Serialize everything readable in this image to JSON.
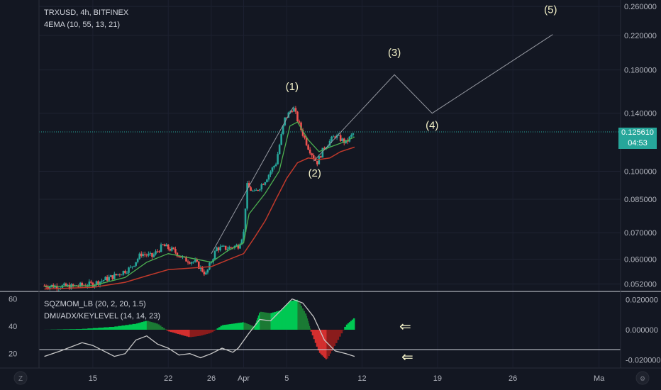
{
  "header": {
    "symbol": "TRXUSD, 4h, BITFINEX",
    "indicator": "4EMA (10, 55, 13, 21)"
  },
  "sub_panel": {
    "indicator1": "SQZMOM_LB (20, 2, 20, 1.5)",
    "indicator2": "DMI/ADX/KEYLEVEL (14, 14, 23)"
  },
  "price_tag": {
    "value": "0.125610",
    "countdown": "04:53"
  },
  "arrows": [
    "⇐",
    "⇐"
  ],
  "colors": {
    "background": "#131722",
    "up": "#26a69a",
    "down": "#ef5350",
    "ema_fast": "#4caf50",
    "ema_slow": "#c0392b",
    "wave": "#9598a1",
    "annotation": "#f3f1c8"
  },
  "chart_data": [
    {
      "type": "candlestick",
      "title": "TRXUSD, 4h, BITFINEX",
      "x_ticks": [
        "15",
        "22",
        "26",
        "Apr",
        "5",
        "12",
        "19",
        "26",
        "Ma"
      ],
      "x_tick_days": [
        15,
        22,
        26,
        29,
        33,
        40,
        47,
        54,
        62
      ],
      "xlim_days": [
        10,
        64
      ],
      "y_scale": "log",
      "y_ticks": [
        0.052,
        0.06,
        0.07,
        0.085,
        0.1,
        0.14,
        0.18,
        0.22,
        0.26
      ],
      "y_tick_labels": [
        "0.052000",
        "0.060000",
        "0.070000",
        "0.085000",
        "0.100000",
        "0.140000",
        "0.180000",
        "0.220000",
        "0.260000"
      ],
      "ylim": [
        0.05,
        0.27
      ],
      "last_price": 0.12561,
      "price_path": [
        [
          10.5,
          0.0515
        ],
        [
          13.0,
          0.0512
        ],
        [
          15.0,
          0.052
        ],
        [
          17.0,
          0.0545
        ],
        [
          18.5,
          0.057
        ],
        [
          19.5,
          0.062
        ],
        [
          20.5,
          0.061
        ],
        [
          21.5,
          0.065
        ],
        [
          22.5,
          0.063
        ],
        [
          23.5,
          0.06
        ],
        [
          24.5,
          0.059
        ],
        [
          25.5,
          0.055
        ],
        [
          26.5,
          0.064
        ],
        [
          27.5,
          0.064
        ],
        [
          28.5,
          0.065
        ],
        [
          29.0,
          0.07
        ],
        [
          29.3,
          0.092
        ],
        [
          30.0,
          0.088
        ],
        [
          31.0,
          0.095
        ],
        [
          32.0,
          0.105
        ],
        [
          32.8,
          0.135
        ],
        [
          33.6,
          0.145
        ],
        [
          34.2,
          0.13
        ],
        [
          35.0,
          0.115
        ],
        [
          35.8,
          0.105
        ],
        [
          36.5,
          0.115
        ],
        [
          37.5,
          0.123
        ],
        [
          38.5,
          0.118
        ],
        [
          39.3,
          0.1256
        ]
      ],
      "ema_fast": [
        [
          10.5,
          0.0512
        ],
        [
          15.0,
          0.0515
        ],
        [
          18.0,
          0.054
        ],
        [
          20.0,
          0.059
        ],
        [
          22.0,
          0.062
        ],
        [
          24.0,
          0.0605
        ],
        [
          26.0,
          0.059
        ],
        [
          27.5,
          0.063
        ],
        [
          29.0,
          0.066
        ],
        [
          29.5,
          0.078
        ],
        [
          31.0,
          0.088
        ],
        [
          32.3,
          0.1
        ],
        [
          33.3,
          0.13
        ],
        [
          34.0,
          0.133
        ],
        [
          35.0,
          0.12
        ],
        [
          36.0,
          0.112
        ],
        [
          37.0,
          0.115
        ],
        [
          38.5,
          0.119
        ],
        [
          39.3,
          0.122
        ]
      ],
      "ema_slow": [
        [
          10.5,
          0.0505
        ],
        [
          15.0,
          0.051
        ],
        [
          18.0,
          0.0525
        ],
        [
          20.0,
          0.0545
        ],
        [
          22.0,
          0.0565
        ],
        [
          24.0,
          0.057
        ],
        [
          26.0,
          0.0575
        ],
        [
          28.0,
          0.0605
        ],
        [
          29.0,
          0.062
        ],
        [
          30.0,
          0.068
        ],
        [
          31.0,
          0.075
        ],
        [
          32.0,
          0.085
        ],
        [
          33.0,
          0.096
        ],
        [
          34.0,
          0.105
        ],
        [
          35.0,
          0.108
        ],
        [
          36.0,
          0.107
        ],
        [
          37.0,
          0.108
        ],
        [
          38.0,
          0.112
        ],
        [
          39.3,
          0.115
        ]
      ],
      "wave_labels": [
        {
          "label": "(1)",
          "day": 33.5,
          "price": 0.16
        },
        {
          "label": "(2)",
          "day": 35.6,
          "price": 0.097
        },
        {
          "label": "(3)",
          "day": 43.0,
          "price": 0.195
        },
        {
          "label": "(4)",
          "day": 46.5,
          "price": 0.128
        },
        {
          "label": "(5)",
          "day": 57.5,
          "price": 0.25
        }
      ],
      "wave_path": [
        [
          35.5,
          0.106
        ],
        [
          43.0,
          0.175
        ],
        [
          46.5,
          0.14
        ],
        [
          57.7,
          0.221
        ]
      ],
      "trend_line": [
        [
          26.0,
          0.062
        ],
        [
          33.6,
          0.145
        ]
      ]
    },
    {
      "type": "area",
      "title": "SQZMOM_LB (20, 2, 20, 1.5)",
      "y_ticks": [
        0.02,
        0.0,
        -0.02
      ],
      "y_tick_labels": [
        "0.020000",
        "0.000000",
        "-0.020000"
      ],
      "left_ticks": [
        60,
        40,
        20
      ],
      "momentum": [
        [
          10.5,
          0.0
        ],
        [
          14.0,
          0.0005
        ],
        [
          17.0,
          0.002
        ],
        [
          19.0,
          0.004
        ],
        [
          20.0,
          0.006
        ],
        [
          21.0,
          0.004
        ],
        [
          22.0,
          -0.001
        ],
        [
          23.0,
          -0.003
        ],
        [
          24.0,
          -0.005
        ],
        [
          25.0,
          -0.004
        ],
        [
          26.0,
          -0.002
        ],
        [
          27.0,
          0.003
        ],
        [
          28.0,
          0.004
        ],
        [
          29.0,
          0.005
        ],
        [
          30.0,
          0.002
        ],
        [
          30.5,
          0.012
        ],
        [
          31.5,
          0.011
        ],
        [
          32.5,
          0.013
        ],
        [
          33.3,
          0.019
        ],
        [
          34.0,
          0.02
        ],
        [
          34.8,
          0.01
        ],
        [
          35.2,
          0.0
        ],
        [
          36.0,
          -0.015
        ],
        [
          36.7,
          -0.02
        ],
        [
          37.5,
          -0.01
        ],
        [
          38.5,
          0.003
        ],
        [
          39.3,
          0.008
        ]
      ],
      "dmi_adx": [
        [
          10.5,
          18
        ],
        [
          12.0,
          22
        ],
        [
          14.0,
          28
        ],
        [
          15.0,
          26
        ],
        [
          16.0,
          22
        ],
        [
          17.0,
          18
        ],
        [
          18.0,
          20
        ],
        [
          19.0,
          30
        ],
        [
          20.0,
          33
        ],
        [
          21.0,
          27
        ],
        [
          22.0,
          24
        ],
        [
          23.0,
          19
        ],
        [
          24.0,
          20
        ],
        [
          25.0,
          17
        ],
        [
          26.0,
          20
        ],
        [
          27.0,
          24
        ],
        [
          28.0,
          21
        ],
        [
          28.5,
          24
        ],
        [
          29.5,
          35
        ],
        [
          30.5,
          45
        ],
        [
          31.5,
          44
        ],
        [
          32.5,
          52
        ],
        [
          33.5,
          60
        ],
        [
          34.5,
          57
        ],
        [
          35.5,
          47
        ],
        [
          36.5,
          30
        ],
        [
          37.5,
          22
        ],
        [
          38.5,
          20
        ],
        [
          39.3,
          18
        ]
      ],
      "key_level": 23
    }
  ]
}
